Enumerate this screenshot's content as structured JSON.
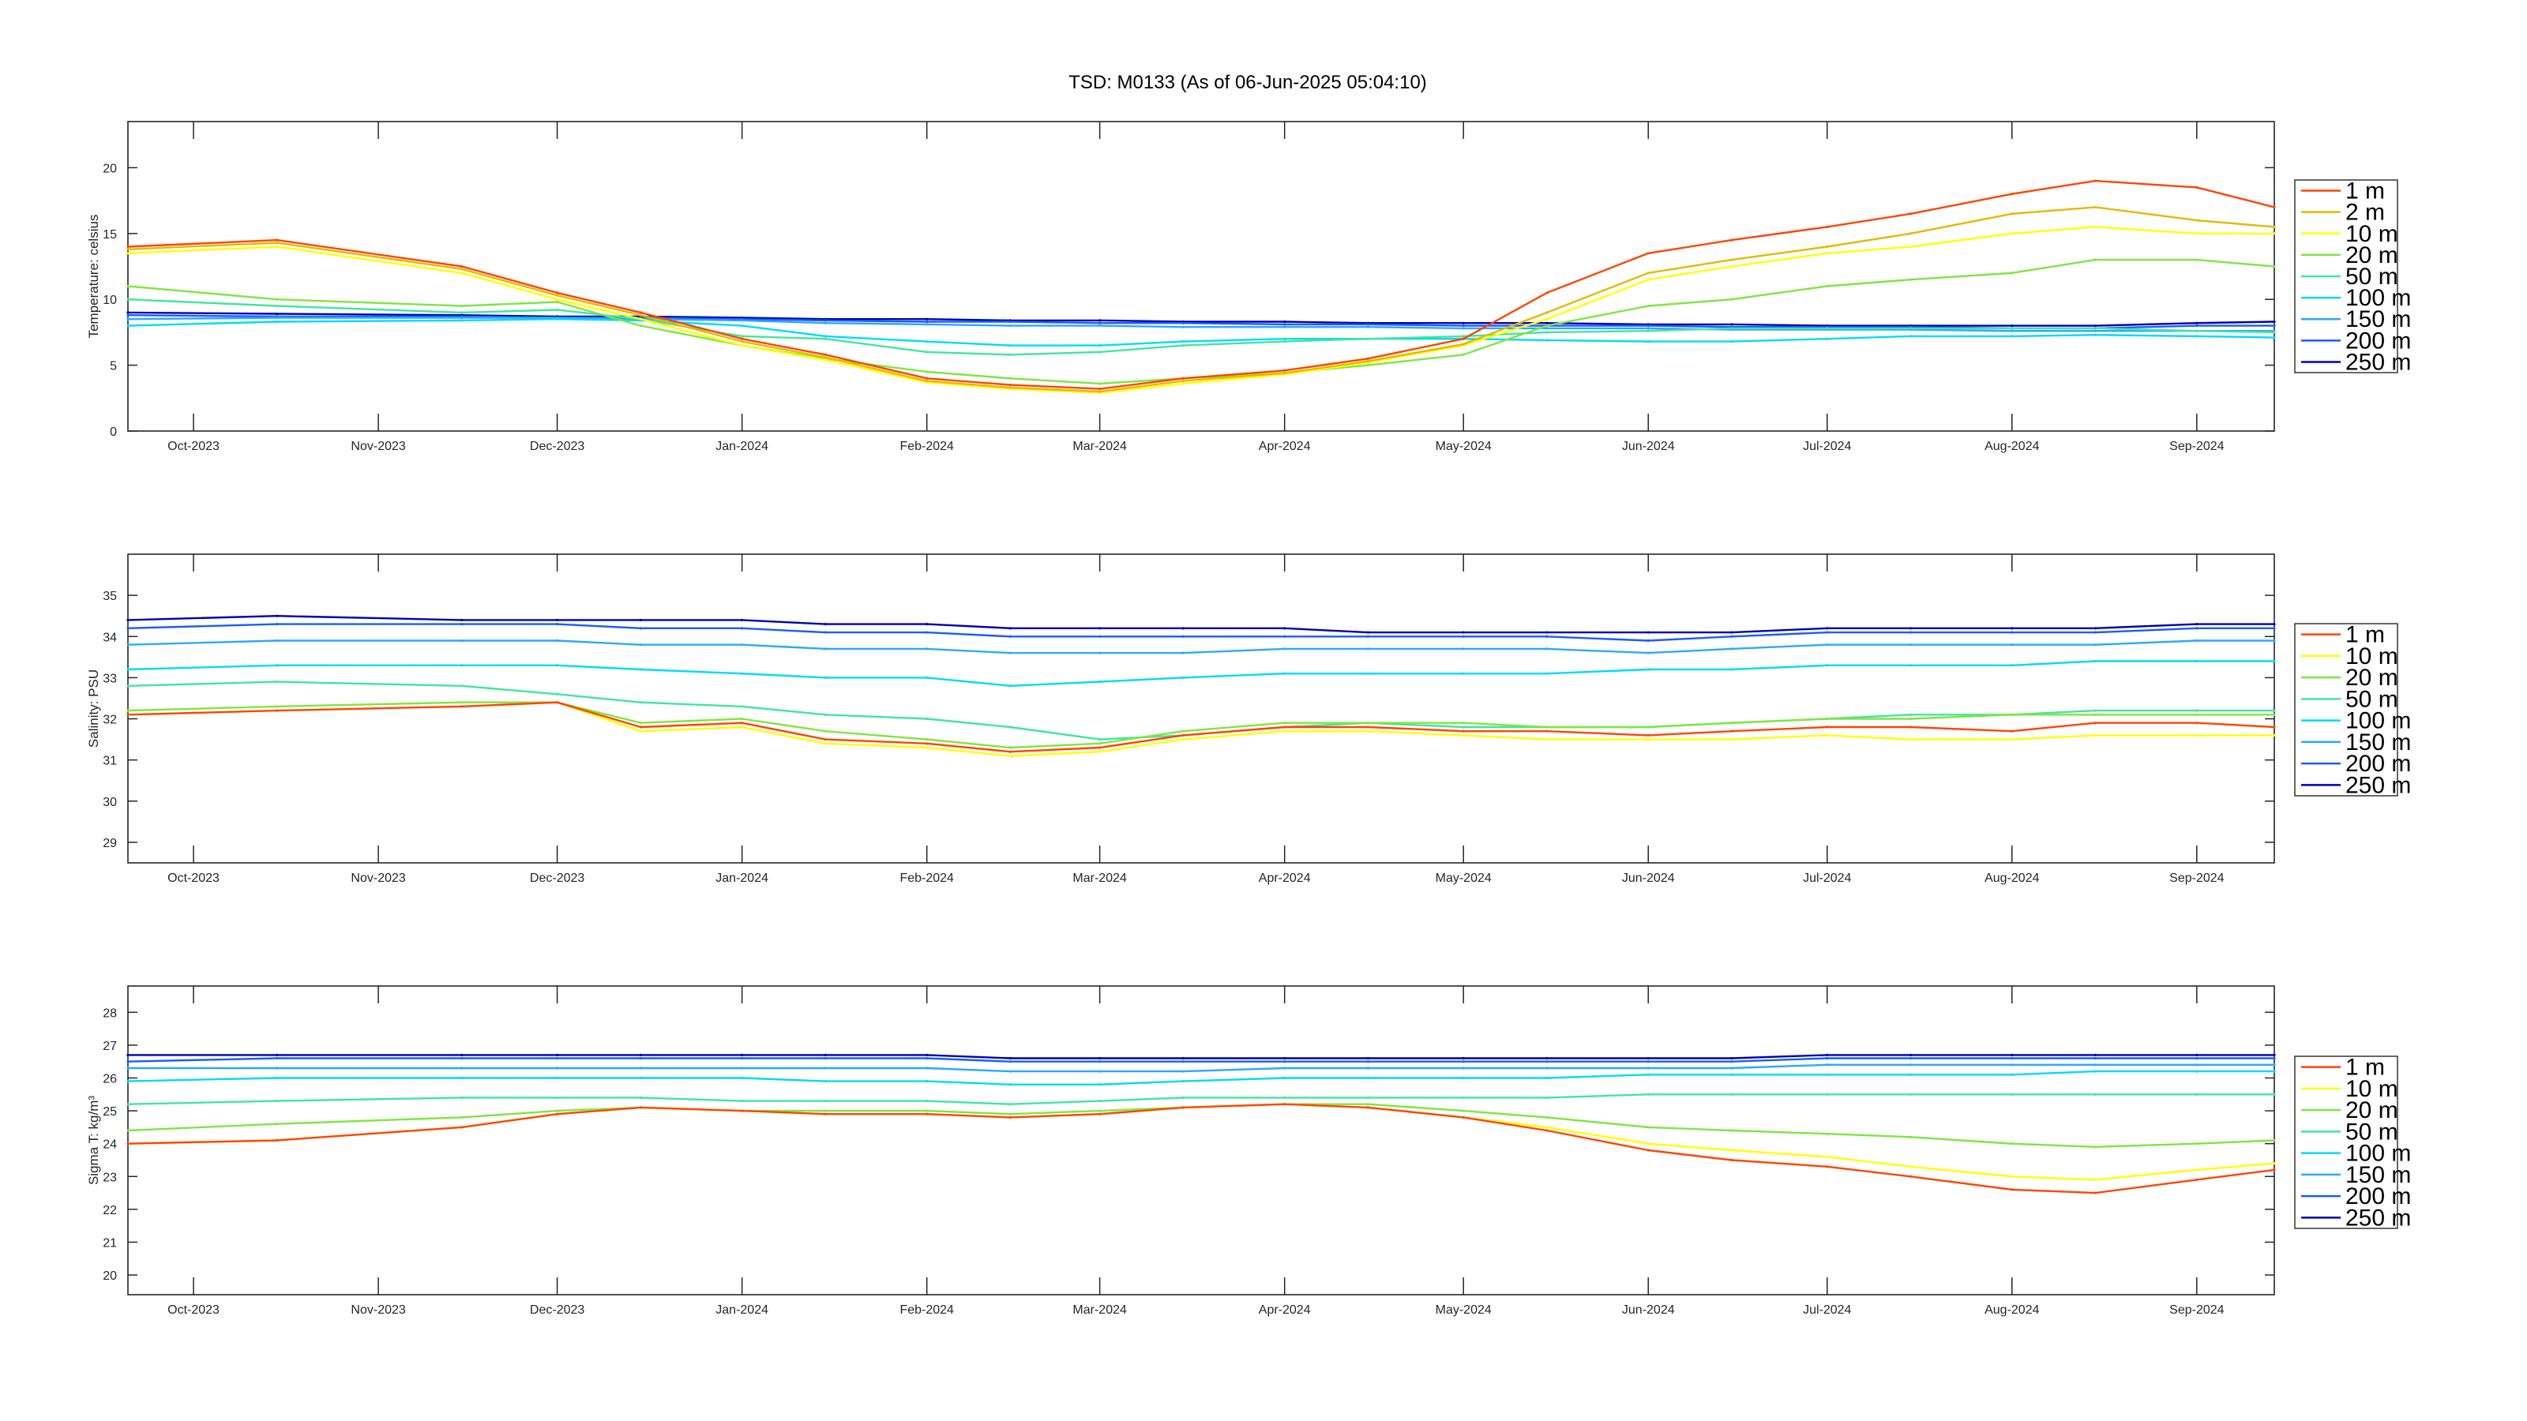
{
  "title": "TSD: M0133 (As of 06-Jun-2025 05:04:10)",
  "chart_data": [
    {
      "type": "line",
      "ylabel": "Temperature:  celsius",
      "ylim": [
        0,
        23.5
      ],
      "yticks": [
        "0",
        "5",
        "10",
        "15",
        "20"
      ],
      "xlim": [
        "2023-09-20",
        "2024-09-14"
      ],
      "xticks": [
        "Oct-2023",
        "Nov-2023",
        "Dec-2023",
        "Jan-2024",
        "Feb-2024",
        "Mar-2024",
        "Apr-2024",
        "May-2024",
        "Jun-2024",
        "Jul-2024",
        "Aug-2024",
        "Sep-2024"
      ],
      "legend_position": "right",
      "x": [
        "2023-09-20",
        "2023-10-15",
        "2023-11-15",
        "2023-12-01",
        "2023-12-15",
        "2024-01-01",
        "2024-01-15",
        "2024-02-01",
        "2024-02-15",
        "2024-03-01",
        "2024-03-15",
        "2024-04-01",
        "2024-04-15",
        "2024-05-01",
        "2024-05-15",
        "2024-06-01",
        "2024-06-15",
        "2024-07-01",
        "2024-07-15",
        "2024-08-01",
        "2024-08-15",
        "2024-09-01",
        "2024-09-14"
      ],
      "series": [
        {
          "name": "1 m",
          "color": "#ff4500",
          "values": [
            14.0,
            14.5,
            12.5,
            10.5,
            9.0,
            7.0,
            5.8,
            4.0,
            3.5,
            3.2,
            4.0,
            4.6,
            5.5,
            7.0,
            10.5,
            13.5,
            14.5,
            15.5,
            16.5,
            18.0,
            19.0,
            18.5,
            17.0
          ]
        },
        {
          "name": "2 m",
          "color": "#e6b800",
          "values": [
            13.8,
            14.3,
            12.3,
            10.3,
            8.8,
            6.8,
            5.6,
            3.8,
            3.3,
            3.0,
            3.8,
            4.4,
            5.3,
            6.6,
            9.0,
            12.0,
            13.0,
            14.0,
            15.0,
            16.5,
            17.0,
            16.0,
            15.5
          ]
        },
        {
          "name": "10 m",
          "color": "#ffff00",
          "values": [
            13.5,
            14.0,
            12.0,
            10.0,
            8.5,
            6.5,
            5.4,
            3.7,
            3.2,
            2.9,
            3.6,
            4.3,
            5.2,
            6.5,
            8.5,
            11.5,
            12.5,
            13.5,
            14.0,
            15.0,
            15.5,
            15.0,
            15.0
          ]
        },
        {
          "name": "20 m",
          "color": "#7fe640",
          "values": [
            11.0,
            10.0,
            9.5,
            9.8,
            8.0,
            6.5,
            5.5,
            4.5,
            4.0,
            3.6,
            4.0,
            4.4,
            5.0,
            5.8,
            8.0,
            9.5,
            10.0,
            11.0,
            11.5,
            12.0,
            13.0,
            13.0,
            12.5
          ]
        },
        {
          "name": "50 m",
          "color": "#40e6a0",
          "values": [
            10.0,
            9.5,
            9.0,
            9.2,
            8.5,
            7.2,
            7.0,
            6.0,
            5.8,
            6.0,
            6.5,
            6.8,
            7.0,
            7.2,
            7.5,
            7.6,
            7.8,
            7.8,
            7.8,
            7.8,
            7.8,
            7.6,
            7.5
          ]
        },
        {
          "name": "100 m",
          "color": "#00d9ff",
          "values": [
            8.0,
            8.3,
            8.4,
            8.5,
            8.4,
            8.0,
            7.2,
            6.8,
            6.5,
            6.5,
            6.8,
            7.0,
            7.0,
            7.0,
            6.9,
            6.8,
            6.8,
            7.0,
            7.2,
            7.2,
            7.3,
            7.2,
            7.1
          ]
        },
        {
          "name": "150 m",
          "color": "#2ca8ff",
          "values": [
            8.5,
            8.6,
            8.6,
            8.6,
            8.5,
            8.4,
            8.2,
            8.1,
            8.0,
            8.0,
            7.9,
            7.9,
            7.9,
            7.8,
            7.8,
            7.8,
            7.7,
            7.7,
            7.7,
            7.6,
            7.6,
            7.6,
            7.6
          ]
        },
        {
          "name": "200 m",
          "color": "#1a5cff",
          "values": [
            8.8,
            8.7,
            8.7,
            8.6,
            8.6,
            8.5,
            8.4,
            8.3,
            8.3,
            8.2,
            8.2,
            8.1,
            8.1,
            8.0,
            8.0,
            8.0,
            7.9,
            7.9,
            7.9,
            7.8,
            7.8,
            8.0,
            8.0
          ]
        },
        {
          "name": "250 m",
          "color": "#0000b3",
          "values": [
            9.0,
            8.9,
            8.8,
            8.7,
            8.7,
            8.6,
            8.5,
            8.5,
            8.4,
            8.4,
            8.3,
            8.3,
            8.2,
            8.2,
            8.2,
            8.1,
            8.1,
            8.0,
            8.0,
            8.0,
            8.0,
            8.2,
            8.3
          ]
        }
      ]
    },
    {
      "type": "line",
      "ylabel": "Salinity:  PSU",
      "ylim": [
        28.5,
        36
      ],
      "yticks": [
        "29",
        "30",
        "31",
        "32",
        "33",
        "34",
        "35"
      ],
      "xlim": [
        "2023-09-20",
        "2024-09-14"
      ],
      "xticks": [
        "Oct-2023",
        "Nov-2023",
        "Dec-2023",
        "Jan-2024",
        "Feb-2024",
        "Mar-2024",
        "Apr-2024",
        "May-2024",
        "Jun-2024",
        "Jul-2024",
        "Aug-2024",
        "Sep-2024"
      ],
      "legend_position": "right",
      "x": [
        "2023-09-20",
        "2023-10-15",
        "2023-11-15",
        "2023-12-01",
        "2023-12-15",
        "2024-01-01",
        "2024-01-15",
        "2024-02-01",
        "2024-02-15",
        "2024-03-01",
        "2024-03-15",
        "2024-04-01",
        "2024-04-15",
        "2024-05-01",
        "2024-05-15",
        "2024-06-01",
        "2024-06-15",
        "2024-07-01",
        "2024-07-15",
        "2024-08-01",
        "2024-08-15",
        "2024-09-01",
        "2024-09-14"
      ],
      "series": [
        {
          "name": "1 m",
          "color": "#ff4500",
          "values": [
            32.1,
            32.2,
            32.3,
            32.4,
            31.8,
            31.9,
            31.5,
            31.4,
            31.2,
            31.3,
            31.6,
            31.8,
            31.8,
            31.7,
            31.7,
            31.6,
            31.7,
            31.8,
            31.8,
            31.7,
            31.9,
            31.9,
            31.8
          ]
        },
        {
          "name": "10 m",
          "color": "#ffff00",
          "values": [
            32.1,
            32.2,
            32.3,
            32.4,
            31.7,
            31.8,
            31.4,
            31.3,
            31.1,
            31.2,
            31.5,
            31.7,
            31.7,
            31.6,
            31.5,
            31.5,
            31.5,
            31.6,
            31.5,
            31.5,
            31.6,
            31.6,
            31.6
          ]
        },
        {
          "name": "20 m",
          "color": "#7fe640",
          "values": [
            32.2,
            32.3,
            32.4,
            32.4,
            31.9,
            32.0,
            31.7,
            31.5,
            31.3,
            31.4,
            31.7,
            31.9,
            31.9,
            31.9,
            31.8,
            31.8,
            31.9,
            32.0,
            32.0,
            32.1,
            32.1,
            32.1,
            32.1
          ]
        },
        {
          "name": "50 m",
          "color": "#40e6a0",
          "values": [
            32.8,
            32.9,
            32.8,
            32.6,
            32.4,
            32.3,
            32.1,
            32.0,
            31.8,
            31.5,
            31.6,
            31.8,
            31.9,
            31.8,
            31.8,
            31.8,
            31.9,
            32.0,
            32.1,
            32.1,
            32.2,
            32.2,
            32.2
          ]
        },
        {
          "name": "100 m",
          "color": "#00d9ff",
          "values": [
            33.2,
            33.3,
            33.3,
            33.3,
            33.2,
            33.1,
            33.0,
            33.0,
            32.8,
            32.9,
            33.0,
            33.1,
            33.1,
            33.1,
            33.1,
            33.2,
            33.2,
            33.3,
            33.3,
            33.3,
            33.4,
            33.4,
            33.4
          ]
        },
        {
          "name": "150 m",
          "color": "#2ca8ff",
          "values": [
            33.8,
            33.9,
            33.9,
            33.9,
            33.8,
            33.8,
            33.7,
            33.7,
            33.6,
            33.6,
            33.6,
            33.7,
            33.7,
            33.7,
            33.7,
            33.6,
            33.7,
            33.8,
            33.8,
            33.8,
            33.8,
            33.9,
            33.9
          ]
        },
        {
          "name": "200 m",
          "color": "#1a5cff",
          "values": [
            34.2,
            34.3,
            34.3,
            34.3,
            34.2,
            34.2,
            34.1,
            34.1,
            34.0,
            34.0,
            34.0,
            34.0,
            34.0,
            34.0,
            34.0,
            33.9,
            34.0,
            34.1,
            34.1,
            34.1,
            34.1,
            34.2,
            34.2
          ]
        },
        {
          "name": "250 m",
          "color": "#0000b3",
          "values": [
            34.4,
            34.5,
            34.4,
            34.4,
            34.4,
            34.4,
            34.3,
            34.3,
            34.2,
            34.2,
            34.2,
            34.2,
            34.1,
            34.1,
            34.1,
            34.1,
            34.1,
            34.2,
            34.2,
            34.2,
            34.2,
            34.3,
            34.3
          ]
        }
      ]
    },
    {
      "type": "line",
      "ylabel": "Sigma T:  kg/m³",
      "ylim": [
        19.4,
        28.8
      ],
      "yticks": [
        "20",
        "21",
        "22",
        "23",
        "24",
        "25",
        "26",
        "27",
        "28"
      ],
      "xlim": [
        "2023-09-20",
        "2024-09-14"
      ],
      "xticks": [
        "Oct-2023",
        "Nov-2023",
        "Dec-2023",
        "Jan-2024",
        "Feb-2024",
        "Mar-2024",
        "Apr-2024",
        "May-2024",
        "Jun-2024",
        "Jul-2024",
        "Aug-2024",
        "Sep-2024"
      ],
      "legend_position": "right",
      "x": [
        "2023-09-20",
        "2023-10-15",
        "2023-11-15",
        "2023-12-01",
        "2023-12-15",
        "2024-01-01",
        "2024-01-15",
        "2024-02-01",
        "2024-02-15",
        "2024-03-01",
        "2024-03-15",
        "2024-04-01",
        "2024-04-15",
        "2024-05-01",
        "2024-05-15",
        "2024-06-01",
        "2024-06-15",
        "2024-07-01",
        "2024-07-15",
        "2024-08-01",
        "2024-08-15",
        "2024-09-01",
        "2024-09-14"
      ],
      "series": [
        {
          "name": "1 m",
          "color": "#ff4500",
          "values": [
            24.0,
            24.1,
            24.5,
            24.9,
            25.1,
            25.0,
            24.9,
            24.9,
            24.8,
            24.9,
            25.1,
            25.2,
            25.1,
            24.8,
            24.4,
            23.8,
            23.5,
            23.3,
            23.0,
            22.6,
            22.5,
            22.9,
            23.2
          ]
        },
        {
          "name": "10 m",
          "color": "#ffff00",
          "values": [
            24.0,
            24.1,
            24.5,
            24.9,
            25.1,
            25.0,
            24.9,
            24.9,
            24.8,
            24.9,
            25.1,
            25.2,
            25.1,
            24.8,
            24.5,
            24.0,
            23.8,
            23.6,
            23.3,
            23.0,
            22.9,
            23.2,
            23.4
          ]
        },
        {
          "name": "20 m",
          "color": "#7fe640",
          "values": [
            24.4,
            24.6,
            24.8,
            25.0,
            25.1,
            25.0,
            25.0,
            25.0,
            24.9,
            25.0,
            25.1,
            25.2,
            25.2,
            25.0,
            24.8,
            24.5,
            24.4,
            24.3,
            24.2,
            24.0,
            23.9,
            24.0,
            24.1
          ]
        },
        {
          "name": "50 m",
          "color": "#40e6a0",
          "values": [
            25.2,
            25.3,
            25.4,
            25.4,
            25.4,
            25.3,
            25.3,
            25.3,
            25.2,
            25.3,
            25.4,
            25.4,
            25.4,
            25.4,
            25.4,
            25.5,
            25.5,
            25.5,
            25.5,
            25.5,
            25.5,
            25.5,
            25.5
          ]
        },
        {
          "name": "100 m",
          "color": "#00d9ff",
          "values": [
            25.9,
            26.0,
            26.0,
            26.0,
            26.0,
            26.0,
            25.9,
            25.9,
            25.8,
            25.8,
            25.9,
            26.0,
            26.0,
            26.0,
            26.0,
            26.1,
            26.1,
            26.1,
            26.1,
            26.1,
            26.2,
            26.2,
            26.2
          ]
        },
        {
          "name": "150 m",
          "color": "#2ca8ff",
          "values": [
            26.3,
            26.3,
            26.3,
            26.3,
            26.3,
            26.3,
            26.3,
            26.3,
            26.2,
            26.2,
            26.2,
            26.3,
            26.3,
            26.3,
            26.3,
            26.3,
            26.3,
            26.4,
            26.4,
            26.4,
            26.4,
            26.4,
            26.4
          ]
        },
        {
          "name": "200 m",
          "color": "#1a5cff",
          "values": [
            26.5,
            26.6,
            26.6,
            26.6,
            26.6,
            26.6,
            26.6,
            26.6,
            26.5,
            26.5,
            26.5,
            26.5,
            26.5,
            26.5,
            26.5,
            26.5,
            26.5,
            26.6,
            26.6,
            26.6,
            26.6,
            26.6,
            26.6
          ]
        },
        {
          "name": "250 m",
          "color": "#0000b3",
          "values": [
            26.7,
            26.7,
            26.7,
            26.7,
            26.7,
            26.7,
            26.7,
            26.7,
            26.6,
            26.6,
            26.6,
            26.6,
            26.6,
            26.6,
            26.6,
            26.6,
            26.6,
            26.7,
            26.7,
            26.7,
            26.7,
            26.7,
            26.7
          ]
        }
      ]
    }
  ]
}
